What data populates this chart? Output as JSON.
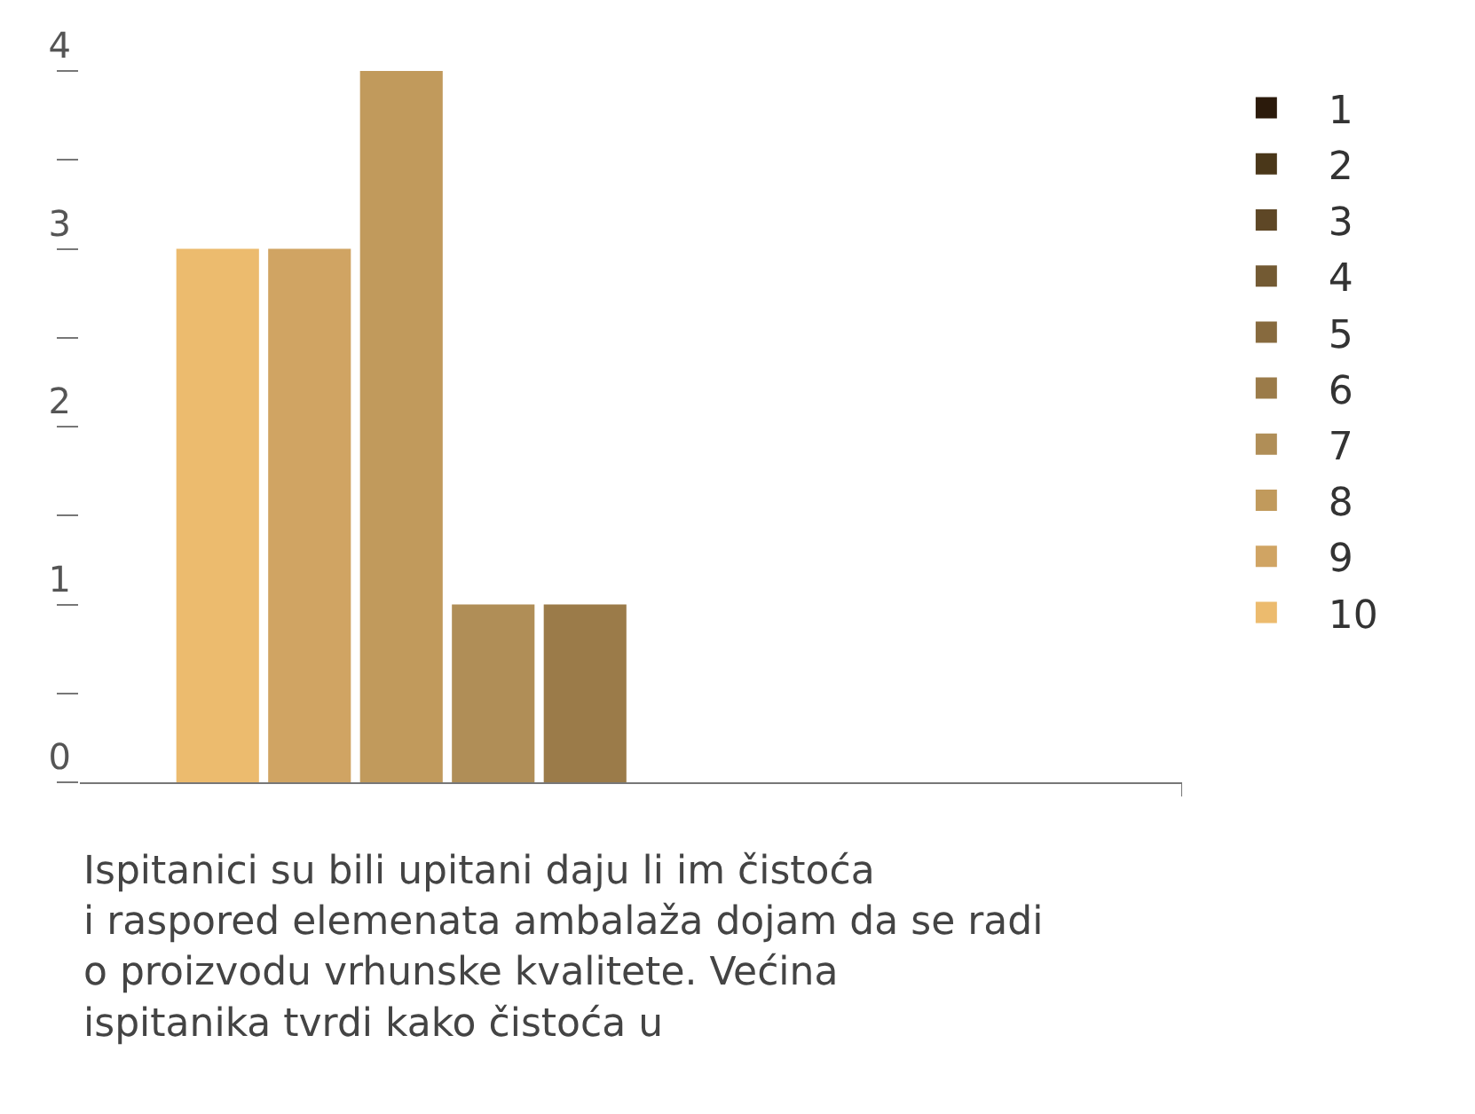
{
  "chart_data": {
    "type": "bar",
    "categories": [
      null,
      null,
      null,
      null,
      null,
      null,
      null,
      null,
      null,
      null,
      null,
      null
    ],
    "series": [
      {
        "name": "1",
        "color": "#2b1a0b",
        "values": [
          null,
          null,
          null,
          null,
          null,
          null,
          null,
          null,
          null,
          null,
          null,
          null
        ]
      },
      {
        "name": "2",
        "color": "#4a3719",
        "values": [
          null,
          null,
          null,
          null,
          null,
          null,
          null,
          null,
          null,
          null,
          null,
          null
        ]
      },
      {
        "name": "3",
        "color": "#5e4726",
        "values": [
          null,
          null,
          null,
          null,
          null,
          null,
          null,
          null,
          null,
          null,
          null,
          null
        ]
      },
      {
        "name": "4",
        "color": "#735a33",
        "values": [
          null,
          null,
          null,
          null,
          null,
          null,
          null,
          null,
          null,
          null,
          null,
          null
        ]
      },
      {
        "name": "5",
        "color": "#876a3e",
        "values": [
          null,
          null,
          null,
          null,
          null,
          null,
          null,
          null,
          null,
          null,
          null,
          null
        ]
      },
      {
        "name": "6",
        "color": "#9b7b49",
        "values": [
          null,
          null,
          null,
          null,
          null,
          1,
          null,
          null,
          null,
          null,
          null,
          null
        ]
      },
      {
        "name": "7",
        "color": "#b08e57",
        "values": [
          null,
          null,
          null,
          null,
          1,
          null,
          null,
          null,
          null,
          null,
          null,
          null
        ]
      },
      {
        "name": "8",
        "color": "#c19a5c",
        "values": [
          null,
          null,
          null,
          4,
          null,
          null,
          null,
          null,
          null,
          null,
          null,
          null
        ]
      },
      {
        "name": "9",
        "color": "#d0a463",
        "values": [
          null,
          null,
          3,
          null,
          null,
          null,
          null,
          null,
          null,
          null,
          null,
          null
        ]
      },
      {
        "name": "10",
        "color": "#ecbb6e",
        "values": [
          null,
          3,
          null,
          null,
          null,
          null,
          null,
          null,
          null,
          null,
          null,
          null
        ]
      }
    ],
    "ylim": [
      0,
      4
    ],
    "yticks": [
      0,
      {
        "value": 0.5,
        "label": null
      },
      1,
      {
        "value": 1.5,
        "label": null
      },
      2,
      {
        "value": 2.5,
        "label": null
      },
      3,
      {
        "value": 3.5,
        "label": null
      },
      4
    ],
    "legend": "right",
    "annotations": [
      "Ispitanici su bili upitani daju li im čistoća i raspored elemenata ambalaža dojam da se radi o proizvodu vrhunske kvalitete. Većina ispitanika tvrdi kako čistoća u"
    ]
  }
}
